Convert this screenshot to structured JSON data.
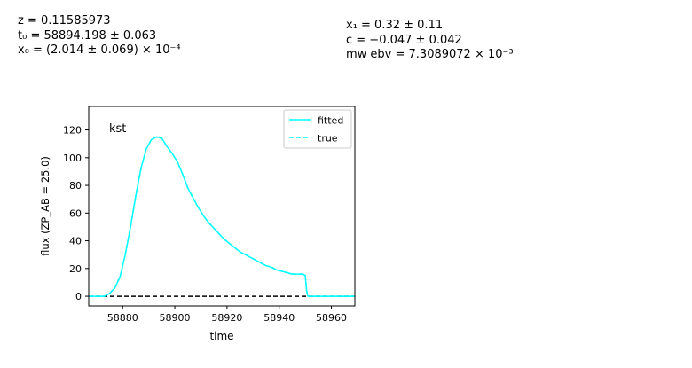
{
  "params_left": [
    "z = 0.11585973",
    "t₀ = 58894.198 ± 0.063",
    "x₀ = (2.014 ± 0.069) × 10⁻⁴"
  ],
  "params_right": [
    "x₁ = 0.32 ± 0.11",
    "c = −0.047 ± 0.042",
    "mw ebv = 7.3089072 × 10⁻³"
  ],
  "chart_data": {
    "type": "line",
    "band_label": "kst",
    "xlabel": "time",
    "ylabel": "flux (ZP_AB = 25.0)",
    "xlim": [
      58867,
      58969
    ],
    "ylim": [
      -7,
      137
    ],
    "xticks": [
      58880,
      58900,
      58920,
      58940,
      58960
    ],
    "yticks": [
      0,
      20,
      40,
      60,
      80,
      100,
      120
    ],
    "legend": {
      "position": "top-right",
      "entries": [
        "fitted",
        "true"
      ]
    },
    "colors": {
      "fitted": "#00ffff",
      "true": "#00ffff",
      "zero_line": "#000000"
    },
    "zero_line": 0,
    "series": [
      {
        "name": "fitted",
        "style": "solid",
        "x": [
          58867,
          58873,
          58875,
          58877,
          58879,
          58881,
          58883,
          58885,
          58887,
          58889,
          58891,
          58893,
          58895,
          58897,
          58899,
          58901,
          58903,
          58905,
          58907,
          58909,
          58911,
          58913,
          58915,
          58917,
          58919,
          58921,
          58923,
          58925,
          58927,
          58929,
          58931,
          58933,
          58935,
          58937,
          58939,
          58941,
          58943,
          58945,
          58947,
          58949,
          58950,
          58950.5,
          58951,
          58955,
          58960,
          58969
        ],
        "y": [
          0,
          0,
          2,
          6,
          14,
          30,
          50,
          72,
          92,
          106,
          113,
          115,
          114,
          108,
          103,
          97,
          88,
          78,
          71,
          64,
          58,
          53,
          49,
          45,
          41,
          38,
          35,
          32,
          30,
          28,
          26,
          24,
          22,
          21,
          19,
          18,
          17,
          16,
          16,
          16,
          15,
          4,
          0,
          0,
          0,
          0
        ]
      },
      {
        "name": "true",
        "style": "dashed",
        "x": [
          58867,
          58873,
          58875,
          58877,
          58879,
          58881,
          58883,
          58885,
          58887,
          58889,
          58891,
          58893,
          58895,
          58897,
          58899,
          58901,
          58903,
          58905,
          58907,
          58909,
          58911,
          58913,
          58915,
          58917,
          58919,
          58921,
          58923,
          58925,
          58927,
          58929,
          58931,
          58933,
          58935,
          58937,
          58939,
          58941,
          58943,
          58945,
          58947,
          58949,
          58950,
          58950.5,
          58951,
          58955,
          58960,
          58969
        ],
        "y": [
          0,
          0,
          2,
          6,
          14,
          30,
          50,
          72,
          92,
          106,
          113,
          115,
          114,
          108,
          103,
          97,
          88,
          78,
          71,
          64,
          58,
          53,
          49,
          45,
          41,
          38,
          35,
          32,
          30,
          28,
          26,
          24,
          22,
          21,
          19,
          18,
          17,
          16,
          16,
          16,
          15,
          4,
          0,
          0,
          0,
          0
        ]
      }
    ]
  }
}
